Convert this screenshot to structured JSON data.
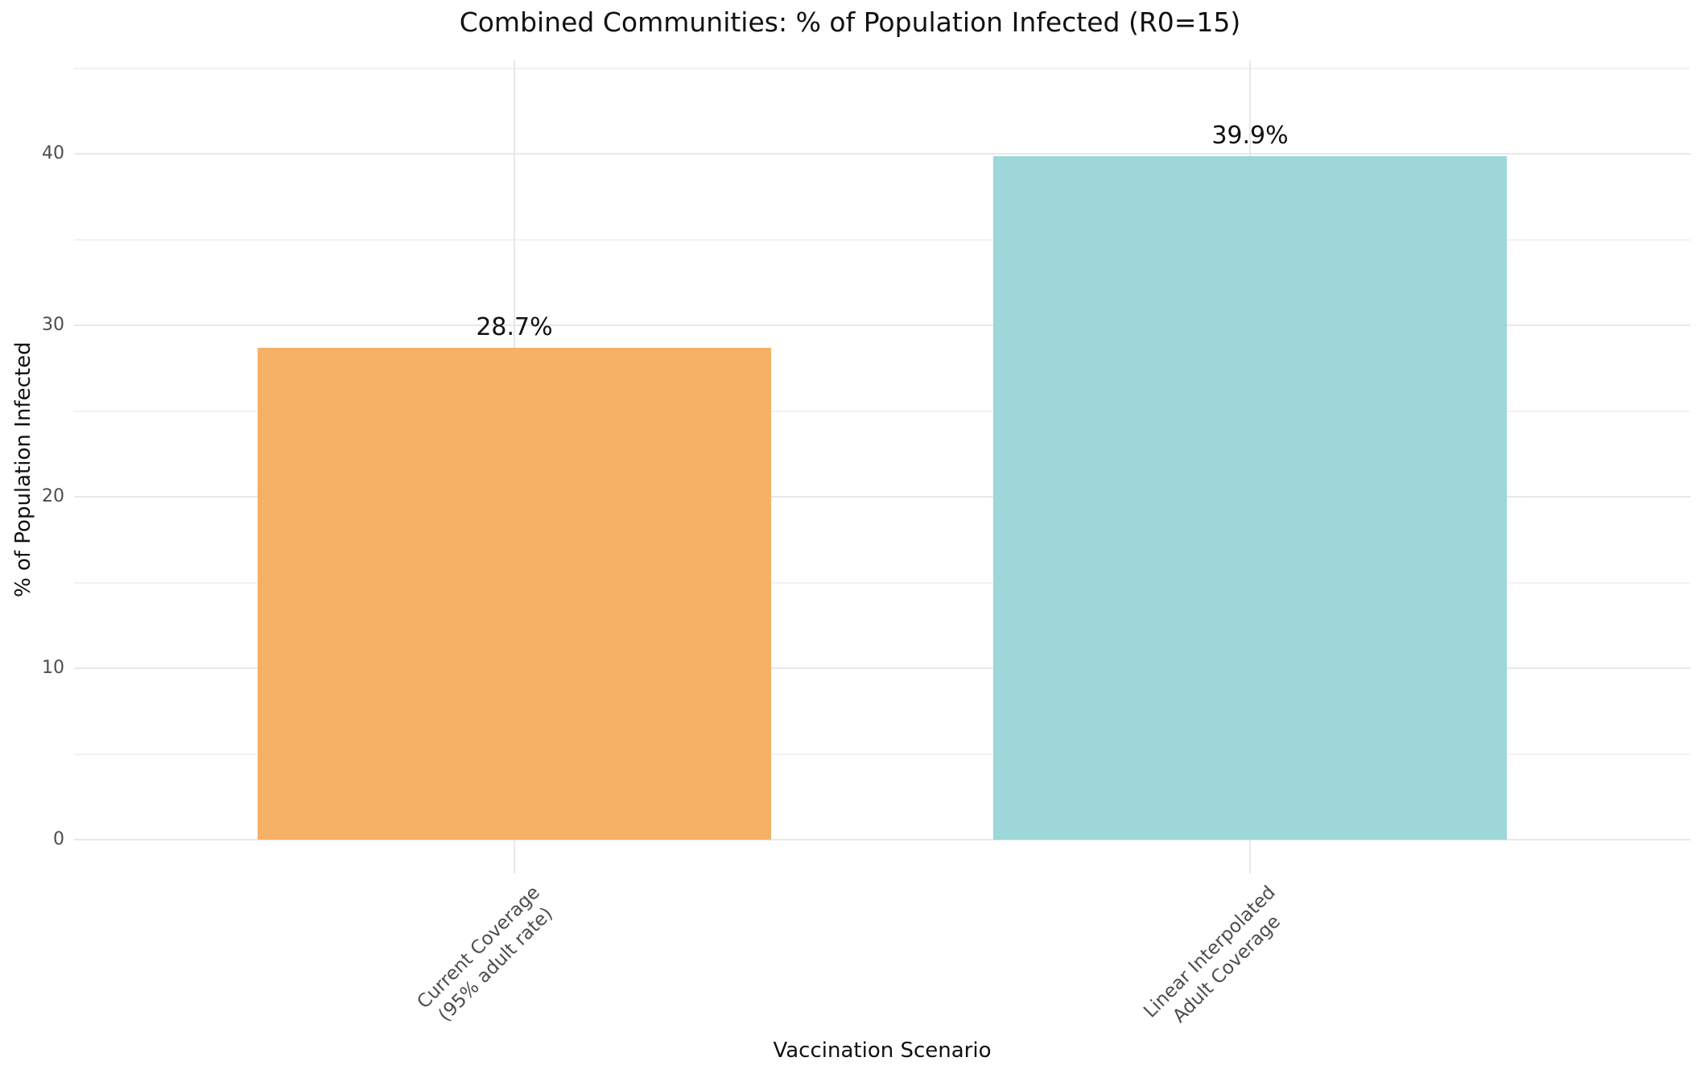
{
  "chart_data": {
    "type": "bar",
    "title": "Combined Communities: % of Population Infected (R0=15)",
    "xlabel": "Vaccination Scenario",
    "ylabel": "% of Population Infected",
    "categories": [
      "Current Coverage\n(95% adult rate)",
      "Linear Interpolated\nAdult Coverage"
    ],
    "values": [
      28.7,
      39.9
    ],
    "bar_value_labels": [
      "28.7%",
      "39.9%"
    ],
    "bar_colors": [
      "#F7B166",
      "#9DD7DA"
    ],
    "ylim": [
      -2,
      45.5
    ],
    "yticks": [
      0,
      10,
      20,
      30,
      40
    ],
    "ytick_labels": [
      "0",
      "10",
      "20",
      "30",
      "40"
    ],
    "minor_yticks": [
      5,
      15,
      25,
      35,
      45
    ],
    "grid": "on",
    "legend": null,
    "colors": {
      "grid_major": "#e8e8e8",
      "grid_minor": "#f2f2f2",
      "tick_text": "#4d4d4d",
      "label_text": "#111111",
      "background": "#ffffff"
    }
  }
}
